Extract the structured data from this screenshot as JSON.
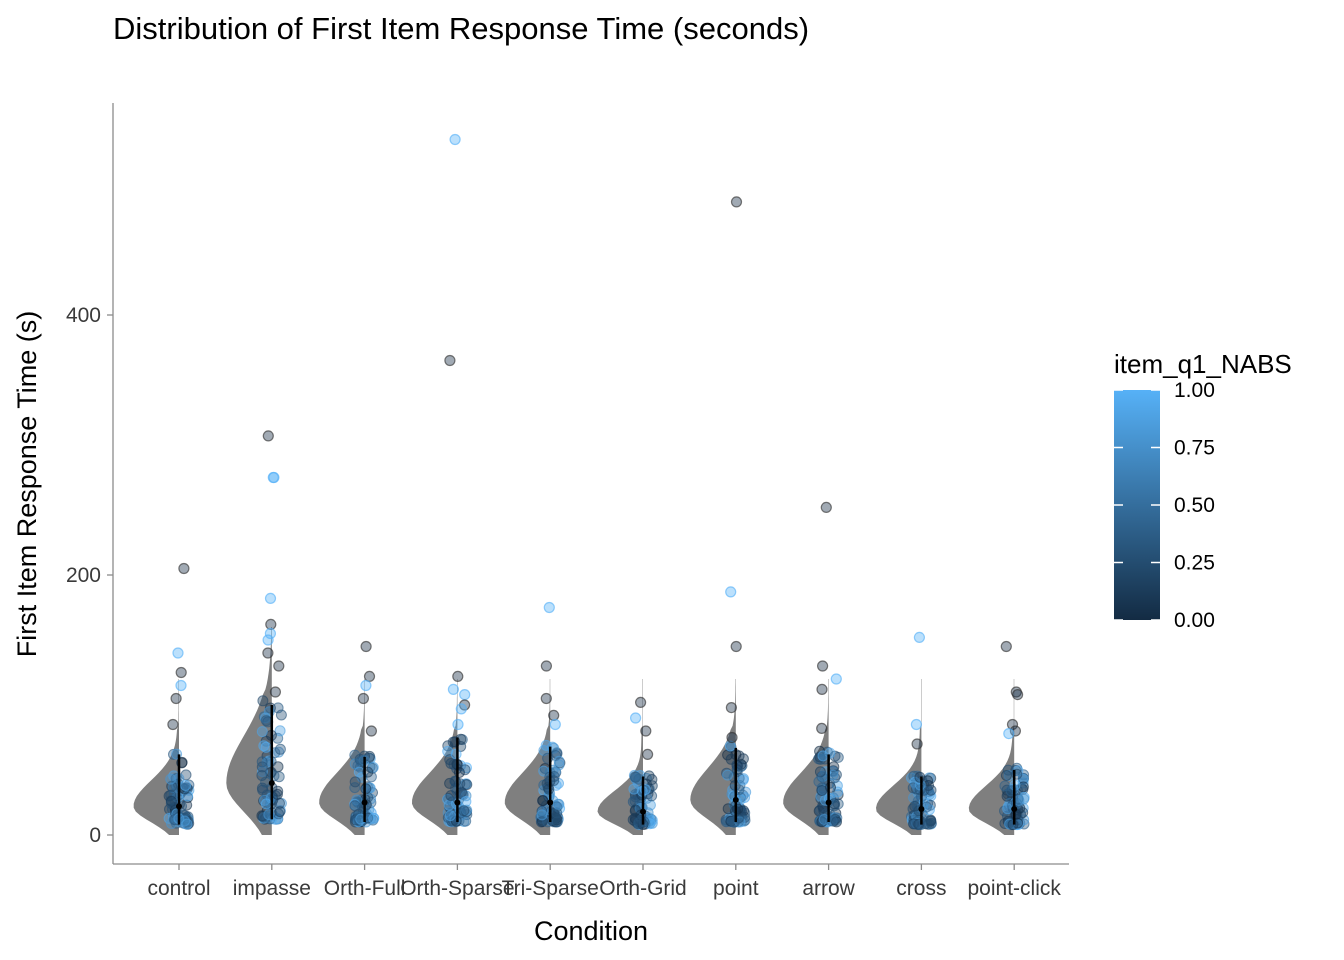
{
  "chart_data": {
    "type": "scatter",
    "title": "Distribution of First Item Response Time (seconds)",
    "xlabel": "Condition",
    "ylabel": "First Item Response Time (s)",
    "categories": [
      "control",
      "impasse",
      "Orth-Full",
      "Orth-Sparse",
      "Tri-Sparse",
      "Orth-Grid",
      "point",
      "arrow",
      "cross",
      "point-click"
    ],
    "y_ticks": [
      0,
      200,
      400
    ],
    "ylim": [
      -22,
      565
    ],
    "grid": false,
    "legend": {
      "title": "item_q1_NABS",
      "position": "right",
      "type": "colorbar",
      "range": [
        0,
        1
      ],
      "ticks": [
        "0.00",
        "0.25",
        "0.50",
        "0.75",
        "1.00"
      ],
      "color_low": "#132B43",
      "color_high": "#56B1F7"
    },
    "colors": {
      "density": "#7f7f7f",
      "interval": "#000000"
    },
    "summary": [
      {
        "median": 22,
        "low": 8,
        "high": 62
      },
      {
        "median": 40,
        "low": 12,
        "high": 100
      },
      {
        "median": 25,
        "low": 10,
        "high": 60
      },
      {
        "median": 25,
        "low": 10,
        "high": 75
      },
      {
        "median": 25,
        "low": 10,
        "high": 68
      },
      {
        "median": 18,
        "low": 8,
        "high": 45
      },
      {
        "median": 27,
        "low": 10,
        "high": 67
      },
      {
        "median": 25,
        "low": 10,
        "high": 62
      },
      {
        "median": 20,
        "low": 8,
        "high": 45
      },
      {
        "median": 20,
        "low": 8,
        "high": 50
      }
    ],
    "outliers": [
      {
        "category": "control",
        "points": [
          [
            205,
            0
          ],
          [
            140,
            1
          ],
          [
            125,
            0
          ],
          [
            115,
            1
          ],
          [
            105,
            0
          ],
          [
            85,
            0
          ]
        ]
      },
      {
        "category": "impasse",
        "points": [
          [
            307,
            0
          ],
          [
            275,
            1
          ],
          [
            275,
            1
          ],
          [
            182,
            1
          ],
          [
            162,
            0
          ],
          [
            155,
            1
          ],
          [
            150,
            1
          ],
          [
            140,
            0
          ],
          [
            130,
            0
          ],
          [
            110,
            0
          ]
        ]
      },
      {
        "category": "Orth-Full",
        "points": [
          [
            145,
            0
          ],
          [
            122,
            0
          ],
          [
            115,
            1
          ],
          [
            105,
            0
          ],
          [
            80,
            0
          ]
        ]
      },
      {
        "category": "Orth-Sparse",
        "points": [
          [
            535,
            1
          ],
          [
            365,
            0
          ],
          [
            122,
            0
          ],
          [
            112,
            1
          ],
          [
            108,
            1
          ],
          [
            100,
            0
          ],
          [
            97,
            1
          ],
          [
            85,
            1
          ]
        ]
      },
      {
        "category": "Tri-Sparse",
        "points": [
          [
            175,
            1
          ],
          [
            130,
            0
          ],
          [
            105,
            0
          ],
          [
            92,
            0
          ],
          [
            85,
            1
          ]
        ]
      },
      {
        "category": "Orth-Grid",
        "points": [
          [
            102,
            0
          ],
          [
            90,
            1
          ],
          [
            80,
            0
          ],
          [
            62,
            0
          ]
        ]
      },
      {
        "category": "point",
        "points": [
          [
            487,
            0
          ],
          [
            187,
            1
          ],
          [
            145,
            0
          ],
          [
            98,
            0
          ],
          [
            75,
            0
          ]
        ]
      },
      {
        "category": "arrow",
        "points": [
          [
            252,
            0
          ],
          [
            130,
            0
          ],
          [
            120,
            1
          ],
          [
            112,
            0
          ],
          [
            82,
            0
          ]
        ]
      },
      {
        "category": "cross",
        "points": [
          [
            152,
            1
          ],
          [
            85,
            1
          ],
          [
            70,
            0
          ]
        ]
      },
      {
        "category": "point-click",
        "points": [
          [
            145,
            0
          ],
          [
            110,
            0
          ],
          [
            108,
            0
          ],
          [
            85,
            0
          ],
          [
            80,
            0
          ],
          [
            78,
            1
          ]
        ]
      }
    ]
  }
}
